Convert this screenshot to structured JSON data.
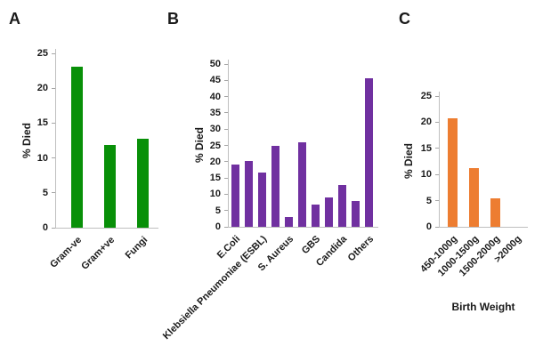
{
  "figure": {
    "panels": [
      {
        "letter": "A"
      },
      {
        "letter": "B"
      },
      {
        "letter": "C"
      }
    ]
  },
  "colors": {
    "panel_a_bars": "#089008",
    "panel_b_bars": "#7030A0",
    "panel_c_bars": "#ED7D31",
    "axis_line": "#BFBFBF",
    "text": "#1A1A1A"
  },
  "chart_data": [
    {
      "type": "bar",
      "panel": "A",
      "title": "",
      "categories": [
        "Gram-ve",
        "Gram+ve",
        "Fungi"
      ],
      "values": [
        23.1,
        11.9,
        12.7
      ],
      "ylabel": "% Died",
      "xlabel": "",
      "ylim": [
        0,
        25
      ],
      "ytick_step": 5,
      "bar_color": "#089008",
      "grid": false,
      "legend": "none"
    },
    {
      "type": "bar",
      "panel": "B",
      "title": "",
      "categories": [
        "E.Coli",
        "",
        "Klebsiella Pneumoniae (ESBL)",
        "",
        "S. Aureus",
        "",
        "GBS",
        "",
        "Candida",
        "",
        "Others"
      ],
      "values": [
        19.2,
        20.2,
        16.8,
        25,
        2.9,
        26,
        6.7,
        9,
        12.8,
        8,
        45.5
      ],
      "ylabel": "% Died",
      "xlabel": "",
      "ylim": [
        0,
        50
      ],
      "ytick_step": 5,
      "bar_color": "#7030A0",
      "grid": false,
      "legend": "none"
    },
    {
      "type": "bar",
      "panel": "C",
      "title": "",
      "categories": [
        "450-1000g",
        "1000-1500g",
        "1500-2000g",
        ">2000g"
      ],
      "values": [
        20.8,
        11.2,
        5.5,
        0
      ],
      "ylabel": "% Died",
      "xlabel": "Birth Weight",
      "ylim": [
        0,
        25
      ],
      "ytick_step": 5,
      "bar_color": "#ED7D31",
      "grid": false,
      "legend": "none"
    }
  ]
}
